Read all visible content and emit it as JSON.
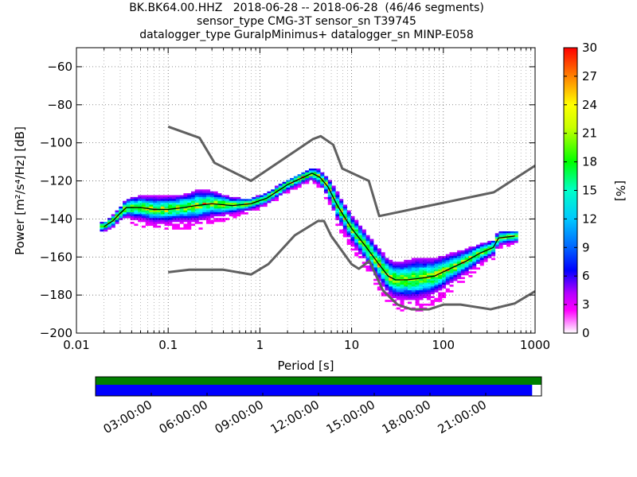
{
  "title": {
    "line1": "BK.BK64.00.HHZ   2018-06-28 -- 2018-06-28  (46/46 segments)",
    "line2": "sensor_type CMG-3T sensor_sn T39745",
    "line3": "datalogger_type GuralpMinimus+ datalogger_sn MINP-E058"
  },
  "chart_data": {
    "type": "heatmap",
    "xlabel": "Period [s]",
    "ylabel": "Power [m²/s⁴/Hz] [dB]",
    "xscale": "log",
    "xlim": [
      0.01,
      1000
    ],
    "ylim": [
      -200,
      -50
    ],
    "xticks": [
      {
        "value": 0.01,
        "label": "0.01"
      },
      {
        "value": 0.1,
        "label": "0.1"
      },
      {
        "value": 1,
        "label": "1"
      },
      {
        "value": 10,
        "label": "10"
      },
      {
        "value": 100,
        "label": "100"
      },
      {
        "value": 1000,
        "label": "1000"
      }
    ],
    "yticks": [
      -60,
      -80,
      -100,
      -120,
      -140,
      -160,
      -180,
      -200
    ],
    "grid": true,
    "colorbar": {
      "label": "[%]",
      "min": 0,
      "max": 30,
      "ticks": [
        0,
        3,
        6,
        9,
        12,
        15,
        18,
        21,
        24,
        27,
        30
      ],
      "colors": [
        "#ffffff",
        "#ff00ff",
        "#8a00ff",
        "#0000ff",
        "#00a0ff",
        "#00ffff",
        "#00ff80",
        "#00ff00",
        "#c8ff00",
        "#ffff00",
        "#ff8000",
        "#ff0000"
      ]
    },
    "noise_model_high": [
      [
        0.1,
        -91.5
      ],
      [
        0.22,
        -97.4
      ],
      [
        0.32,
        -110.5
      ],
      [
        0.8,
        -120
      ],
      [
        3.8,
        -98
      ],
      [
        4.6,
        -96.5
      ],
      [
        6.3,
        -101
      ],
      [
        7.9,
        -113.5
      ],
      [
        15.4,
        -120
      ],
      [
        20,
        -138.5
      ],
      [
        354.8,
        -126
      ],
      [
        1000,
        -112
      ]
    ],
    "noise_model_low": [
      [
        0.1,
        -168
      ],
      [
        0.17,
        -166.7
      ],
      [
        0.4,
        -166.7
      ],
      [
        0.8,
        -169.2
      ],
      [
        1.24,
        -163.7
      ],
      [
        2.4,
        -148.6
      ],
      [
        4.3,
        -141.1
      ],
      [
        5,
        -141.1
      ],
      [
        6,
        -149
      ],
      [
        10,
        -163.8
      ],
      [
        12,
        -166.2
      ],
      [
        15.6,
        -162.1
      ],
      [
        21.9,
        -177.5
      ],
      [
        31.6,
        -185
      ],
      [
        45,
        -187.5
      ],
      [
        70,
        -187.5
      ],
      [
        101,
        -185
      ],
      [
        154,
        -185
      ],
      [
        328,
        -187.5
      ],
      [
        600,
        -184.4
      ],
      [
        1000,
        -178
      ]
    ],
    "mode_curve": [
      [
        0.02,
        -144
      ],
      [
        0.025,
        -141
      ],
      [
        0.03,
        -137
      ],
      [
        0.035,
        -134
      ],
      [
        0.05,
        -134
      ],
      [
        0.07,
        -135
      ],
      [
        0.1,
        -135
      ],
      [
        0.15,
        -134
      ],
      [
        0.2,
        -133
      ],
      [
        0.3,
        -132
      ],
      [
        0.5,
        -133
      ],
      [
        0.8,
        -132
      ],
      [
        1.2,
        -129
      ],
      [
        2,
        -122
      ],
      [
        3,
        -118
      ],
      [
        3.7,
        -116
      ],
      [
        4.5,
        -118
      ],
      [
        5.5,
        -123
      ],
      [
        7,
        -133
      ],
      [
        10,
        -145
      ],
      [
        14,
        -154
      ],
      [
        20,
        -164
      ],
      [
        25,
        -170
      ],
      [
        30,
        -172
      ],
      [
        40,
        -172
      ],
      [
        60,
        -171
      ],
      [
        80,
        -170
      ],
      [
        120,
        -166
      ],
      [
        180,
        -162
      ],
      [
        250,
        -158
      ],
      [
        350,
        -155
      ],
      [
        400,
        -150
      ],
      [
        600,
        -149
      ]
    ],
    "spread_band": [
      [
        0.02,
        1.5
      ],
      [
        0.03,
        2.5
      ],
      [
        0.04,
        4
      ],
      [
        0.07,
        5
      ],
      [
        0.1,
        5
      ],
      [
        0.15,
        5
      ],
      [
        0.2,
        6
      ],
      [
        0.3,
        5
      ],
      [
        0.5,
        3
      ],
      [
        0.8,
        2
      ],
      [
        1.2,
        2
      ],
      [
        2,
        2
      ],
      [
        3.5,
        2
      ],
      [
        5,
        3
      ],
      [
        7,
        5
      ],
      [
        10,
        5
      ],
      [
        20,
        6
      ],
      [
        30,
        7
      ],
      [
        50,
        8
      ],
      [
        80,
        7
      ],
      [
        150,
        5
      ],
      [
        300,
        3
      ],
      [
        600,
        2
      ]
    ],
    "time_axis": {
      "labels": [
        "03:00:00",
        "06:00:00",
        "09:00:00",
        "12:00:00",
        "15:00:00",
        "18:00:00",
        "21:00:00"
      ],
      "hours": [
        3,
        6,
        9,
        12,
        15,
        18,
        21
      ],
      "span_hours": 24,
      "data_coverage_end_hours": 23.5,
      "coverage_color": "#008000",
      "segments_color": "#0000ff"
    }
  }
}
